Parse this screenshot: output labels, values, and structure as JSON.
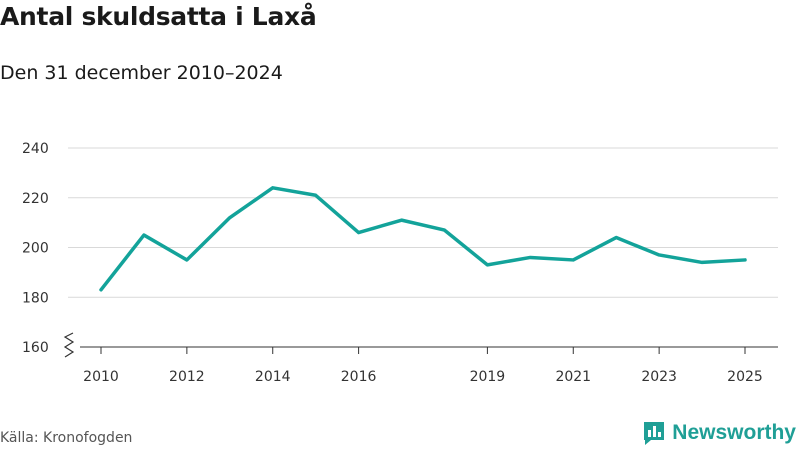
{
  "chart_data": {
    "type": "line",
    "title": "Antal skuldsatta i Laxå",
    "subtitle": "Den 31 december 2010–2024",
    "xlabel": "",
    "ylabel": "",
    "x": [
      2010,
      2011,
      2012,
      2013,
      2014,
      2015,
      2016,
      2017,
      2018,
      2019,
      2020,
      2021,
      2022,
      2023,
      2024,
      2025
    ],
    "series": [
      {
        "name": "Antal skuldsatta",
        "values": [
          183,
          205,
          195,
          212,
          224,
          221,
          206,
          211,
          207,
          193,
          196,
          195,
          204,
          197,
          194,
          195
        ]
      }
    ],
    "xticks": [
      2010,
      2012,
      2014,
      2016,
      2019,
      2021,
      2023,
      2025
    ],
    "yticks": [
      160,
      180,
      200,
      220,
      240
    ],
    "ylim": [
      160,
      240
    ],
    "xlim": [
      2010,
      2025
    ],
    "grid": true,
    "axis_break": true
  },
  "source": "Källa: Kronofogden",
  "logo_text": "Newsworthy",
  "colors": {
    "line": "#13a39a",
    "grid": "#d9d9d9",
    "axis": "#333333",
    "logo_icon": "#1f9f96",
    "logo_text": "#1f9f96"
  }
}
